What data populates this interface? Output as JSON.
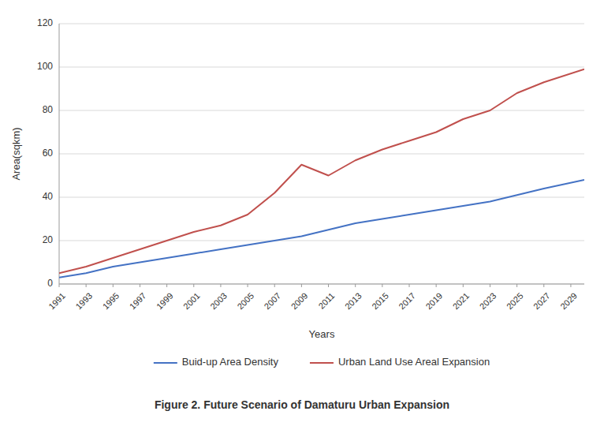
{
  "chart_data": {
    "type": "line",
    "title": "Figure 2. Future Scenario of Damaturu Urban Expansion",
    "x_label": "Years",
    "y_label": "Area(sqkm)",
    "x": [
      1991,
      1993,
      1995,
      1997,
      1999,
      2001,
      2003,
      2005,
      2007,
      2009,
      2011,
      2013,
      2015,
      2017,
      2019,
      2021,
      2023,
      2025,
      2027,
      2030
    ],
    "series": [
      {
        "name": "Buid-up Area Density",
        "color": "#4472C4",
        "values": [
          3,
          5,
          8,
          10,
          12,
          14,
          16,
          18,
          20,
          22,
          25,
          28,
          30,
          32,
          34,
          36,
          38,
          41,
          44,
          48
        ]
      },
      {
        "name": "Urban Land Use Areal Expansion",
        "color": "#C0504D",
        "values": [
          5,
          8,
          12,
          16,
          20,
          24,
          27,
          32,
          42,
          55,
          50,
          57,
          62,
          66,
          70,
          76,
          80,
          88,
          93,
          99
        ]
      }
    ],
    "xlim": [
      1991,
      2030
    ],
    "xticks": [
      1991,
      1993,
      1995,
      1997,
      1999,
      2001,
      2003,
      2005,
      2007,
      2009,
      2011,
      2013,
      2015,
      2017,
      2019,
      2021,
      2023,
      2025,
      2027,
      2029
    ],
    "ylim": [
      0,
      120
    ],
    "yticks": [
      0,
      20,
      40,
      60,
      80,
      100,
      120
    ],
    "grid": true,
    "legend": "bottom"
  }
}
